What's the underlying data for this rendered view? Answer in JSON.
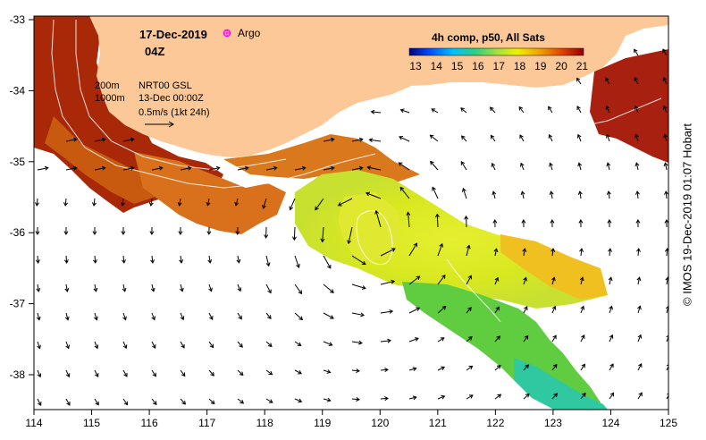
{
  "header": {
    "date": "17-Dec-2019",
    "time": "04Z",
    "argo_label": "Argo",
    "composite_title": "4h comp, p50, All Sats",
    "colorbar_ticks": [
      "13",
      "14",
      "15",
      "16",
      "17",
      "18",
      "19",
      "20",
      "21"
    ]
  },
  "legend": {
    "contour_200": "200m",
    "contour_1000": "1000m",
    "product": "NRT00 GSL",
    "product_date": "13-Dec 00:00Z",
    "scale_text": "0.5m/s (1kt 24h)"
  },
  "axes": {
    "x_ticks": [
      "114",
      "115",
      "116",
      "117",
      "118",
      "119",
      "120",
      "121",
      "122",
      "123",
      "124",
      "125"
    ],
    "y_ticks": [
      "-33",
      "-34",
      "-35",
      "-36",
      "-37",
      "-38"
    ]
  },
  "credit": "© IMOS 19-Dec-2019 01:07 Hobart",
  "colors": {
    "land": "#fcc898",
    "sst_scale": [
      "#000080",
      "#0040ff",
      "#00c0ff",
      "#20d080",
      "#a0e040",
      "#f0f000",
      "#f0a000",
      "#e05000",
      "#a00000"
    ]
  }
}
